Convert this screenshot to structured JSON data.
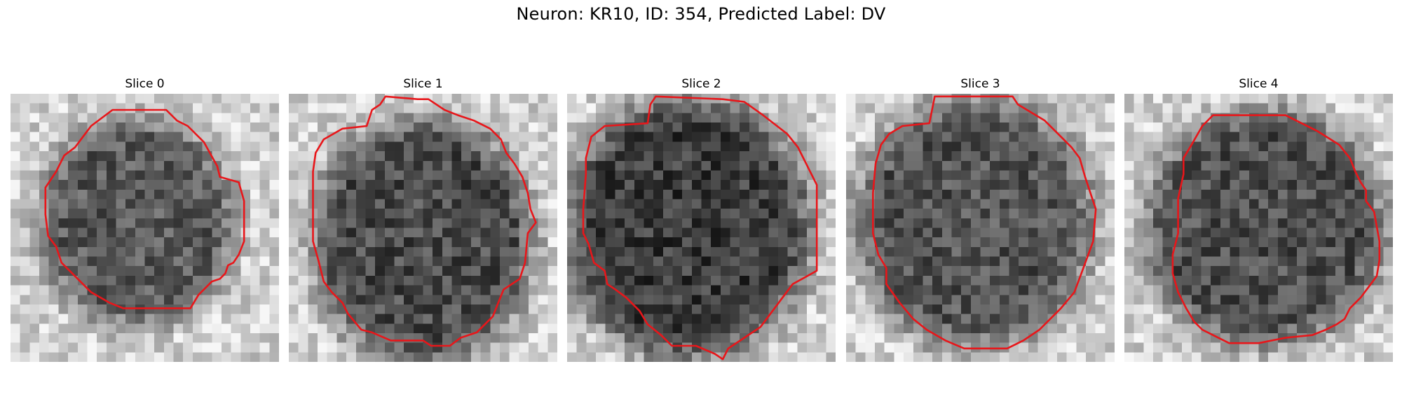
{
  "figure": {
    "title": "Neuron: KR10, ID: 354, Predicted Label: DV"
  },
  "colors": {
    "contour": "#e8161a",
    "background": "#ffffff"
  },
  "panels": [
    {
      "title": "Slice 0"
    },
    {
      "title": "Slice 1"
    },
    {
      "title": "Slice 2"
    },
    {
      "title": "Slice 3"
    },
    {
      "title": "Slice 4"
    }
  ]
}
